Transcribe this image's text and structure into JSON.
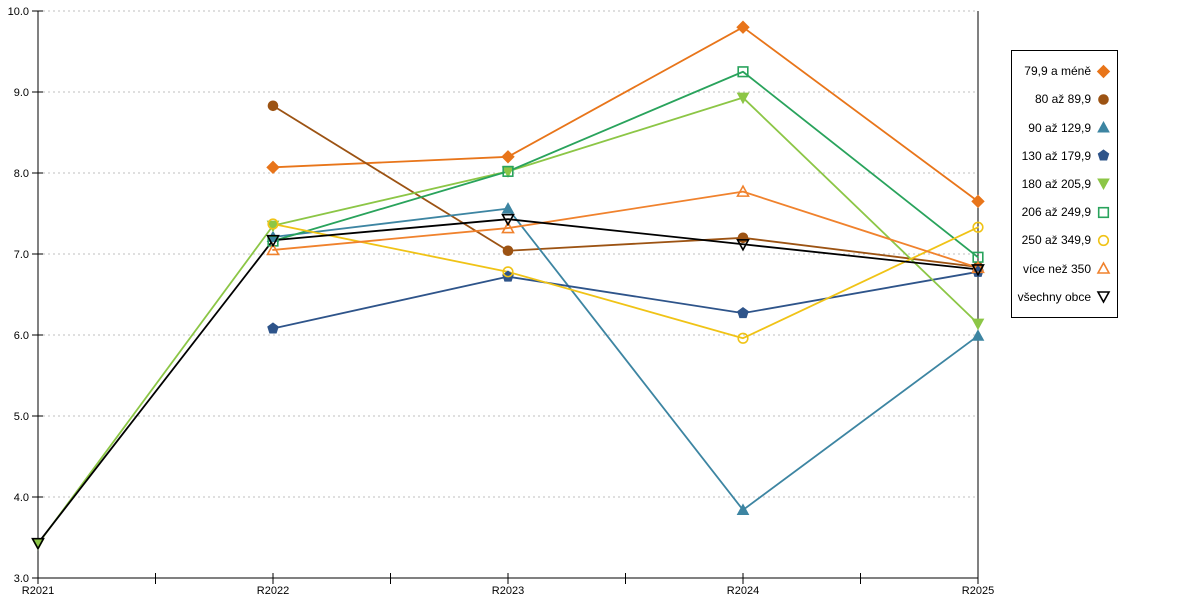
{
  "chart_data": {
    "type": "line",
    "title": "",
    "xlabel": "",
    "ylabel": "",
    "categories": [
      "R2021",
      "R2022",
      "R2023",
      "R2024",
      "R2025"
    ],
    "y_axis": {
      "min": 3.0,
      "max": 10.0,
      "step": 1.0,
      "tick_labels": [
        "3.0",
        "4.0",
        "5.0",
        "6.0",
        "7.0",
        "8.0",
        "9.0",
        "10.0"
      ]
    },
    "grid": "horizontal-dashed",
    "legend_position": "right",
    "series": [
      {
        "name": "79,9 a méně",
        "color": "#E8751A",
        "marker": "diamond",
        "fill": "solid",
        "values": [
          null,
          8.07,
          8.2,
          9.8,
          7.65
        ]
      },
      {
        "name": "80 až 89,9",
        "color": "#9C5313",
        "marker": "circle",
        "fill": "solid",
        "values": [
          null,
          8.83,
          7.04,
          7.2,
          6.84
        ]
      },
      {
        "name": "90 až 129,9",
        "color": "#3D85A2",
        "marker": "triangle-up",
        "fill": "solid",
        "values": [
          null,
          7.21,
          7.56,
          3.84,
          5.99
        ]
      },
      {
        "name": "130 až 179,9",
        "color": "#2E548A",
        "marker": "pentagon",
        "fill": "solid",
        "values": [
          null,
          6.08,
          6.72,
          6.27,
          6.78
        ]
      },
      {
        "name": "180 až 205,9",
        "color": "#8CC646",
        "marker": "triangle-down",
        "fill": "solid",
        "values": [
          3.42,
          7.35,
          8.02,
          8.93,
          6.14
        ]
      },
      {
        "name": "206 až 249,9",
        "color": "#29A35C",
        "marker": "square",
        "fill": "hollow",
        "values": [
          null,
          7.16,
          8.02,
          9.25,
          6.96
        ]
      },
      {
        "name": "250 až 349,9",
        "color": "#F0C316",
        "marker": "circle",
        "fill": "hollow",
        "values": [
          null,
          7.37,
          6.78,
          5.96,
          7.33
        ]
      },
      {
        "name": "více než 350",
        "color": "#F0822D",
        "marker": "triangle-up",
        "fill": "hollow",
        "values": [
          null,
          7.05,
          7.32,
          7.77,
          6.83
        ]
      },
      {
        "name": "všechny obce",
        "color": "#000000",
        "marker": "triangle-down",
        "fill": "hollow",
        "values": [
          3.43,
          7.17,
          7.43,
          7.12,
          6.81
        ]
      }
    ]
  }
}
